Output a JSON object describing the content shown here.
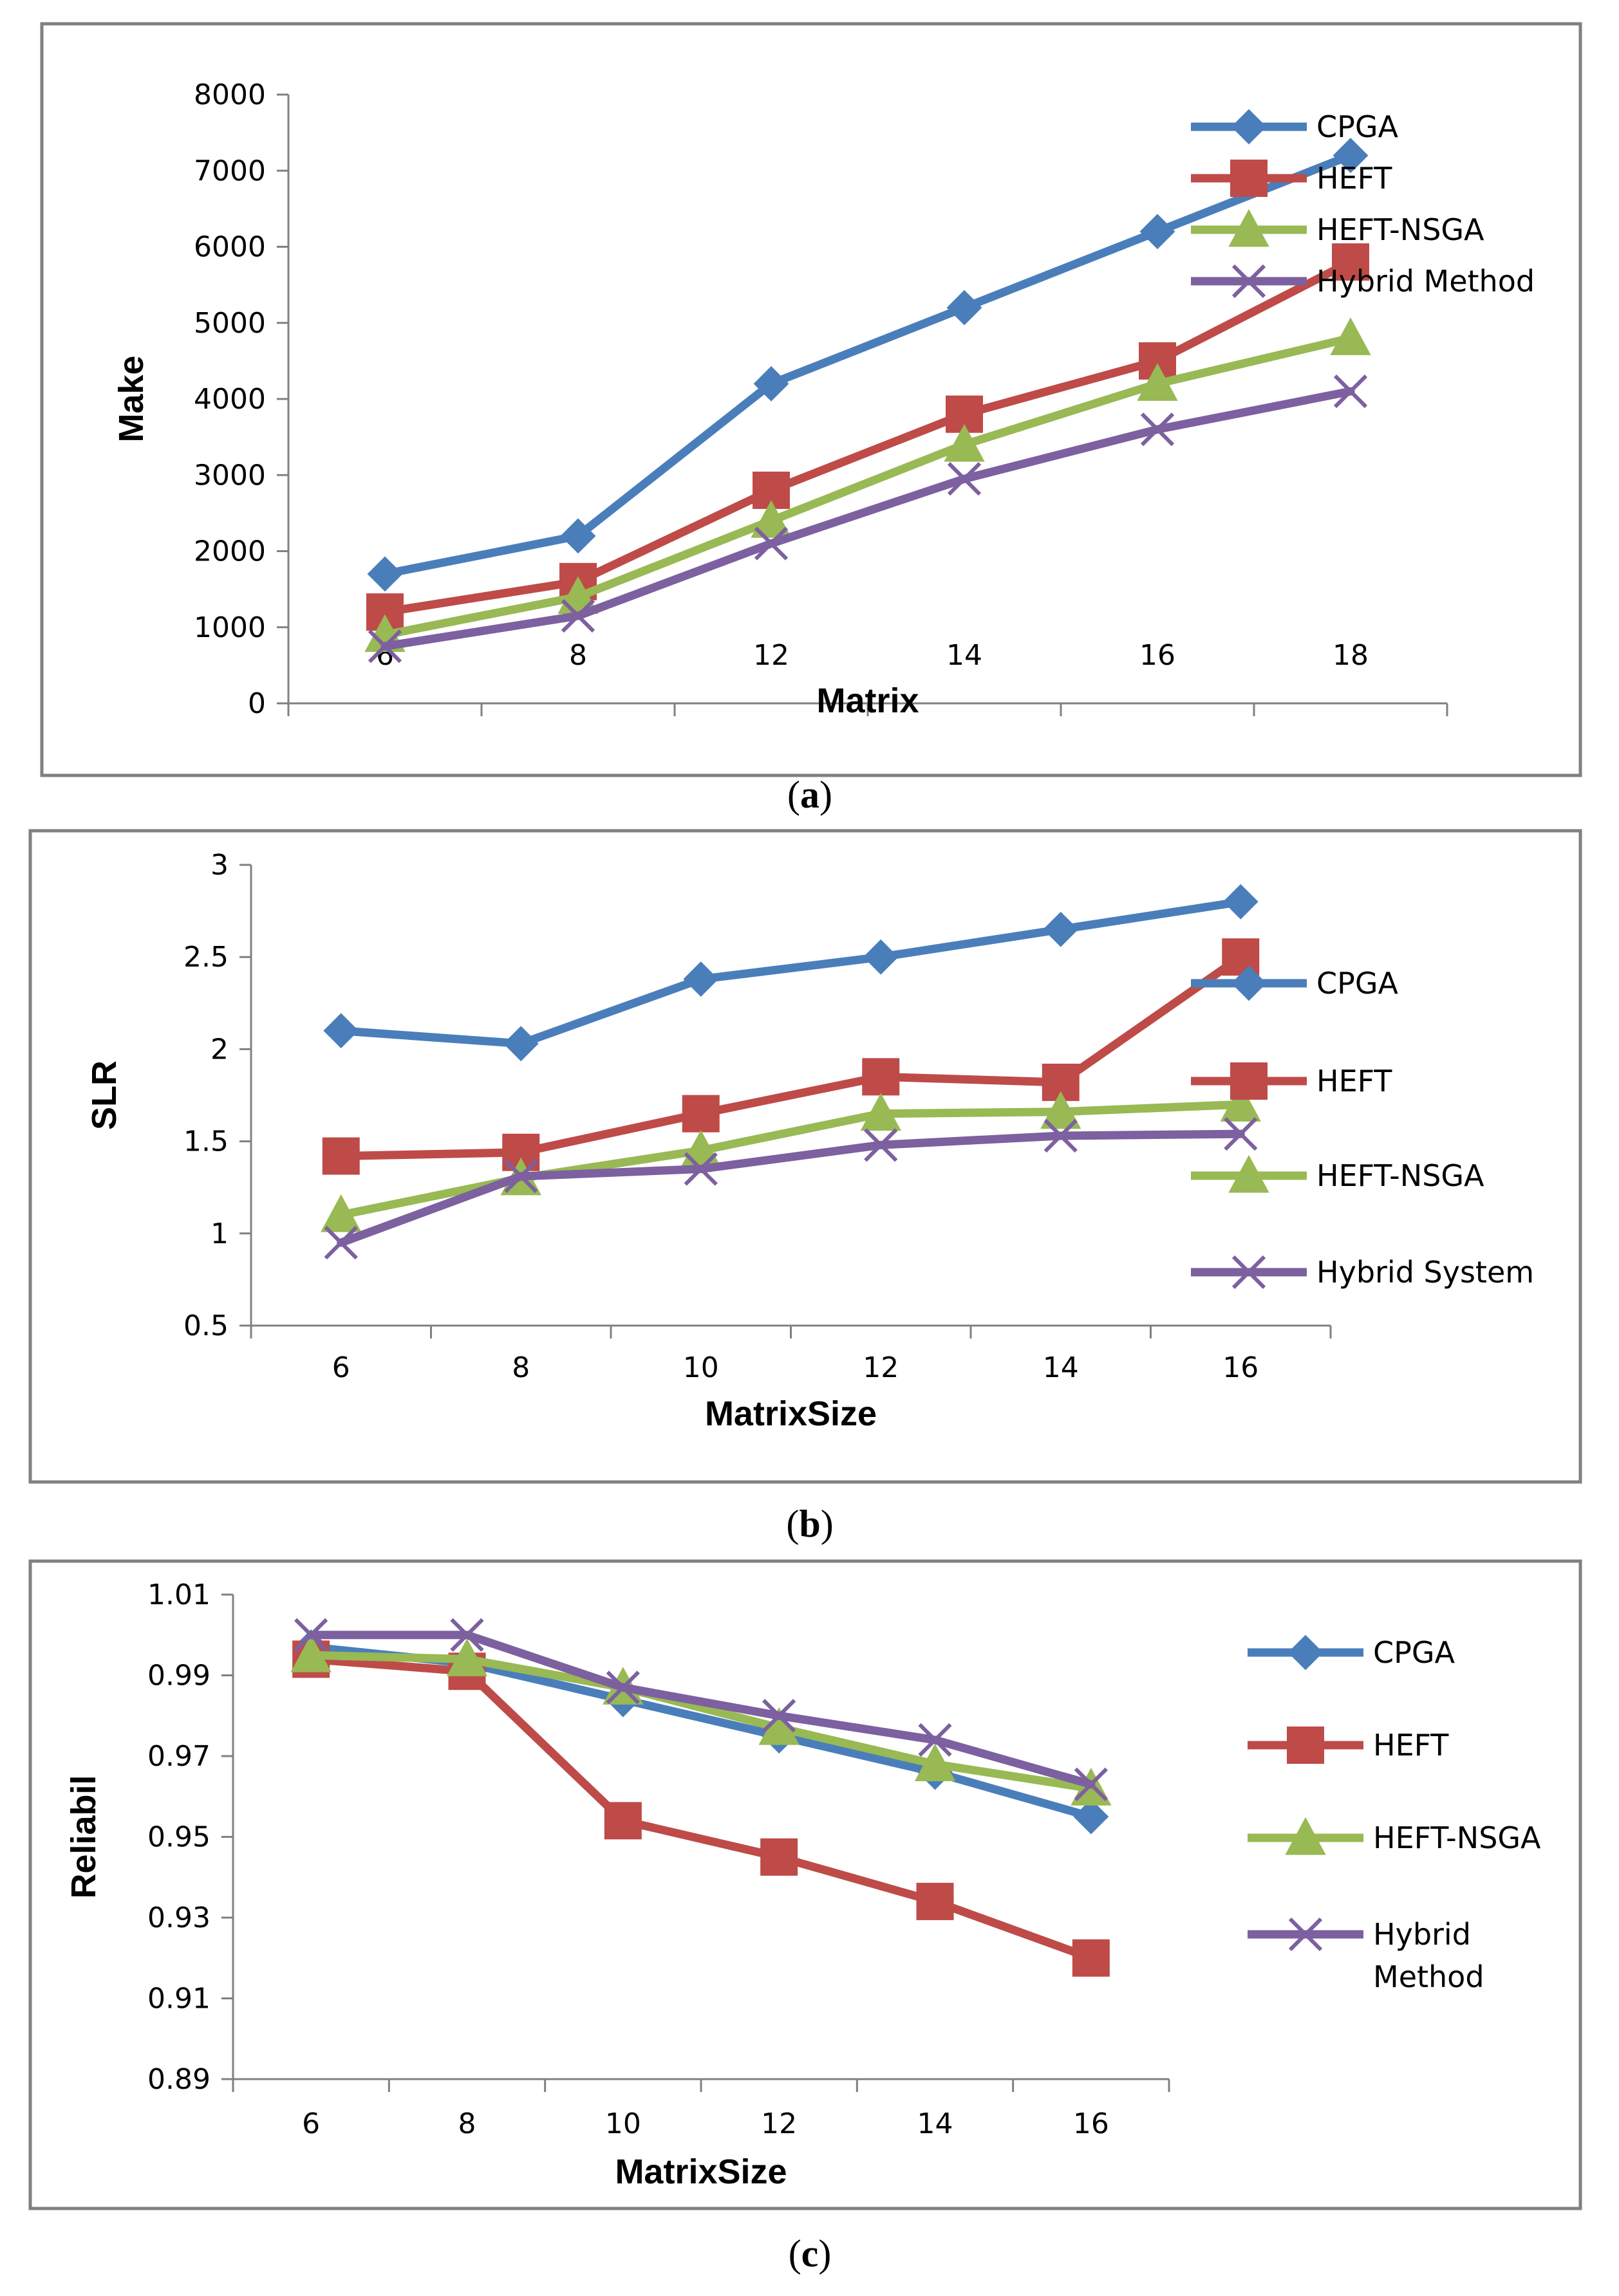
{
  "chart_data": [
    {
      "id": "a",
      "type": "line",
      "caption_letter": "a",
      "xlabel": "Matrix",
      "ylabel": "Make",
      "categories": [
        "6",
        "8",
        "12",
        "14",
        "16",
        "18"
      ],
      "ylim": [
        0,
        8000
      ],
      "yticks": [
        0,
        1000,
        2000,
        3000,
        4000,
        5000,
        6000,
        7000,
        8000
      ],
      "ytick_labels": [
        "0",
        "1000",
        "2000",
        "3000",
        "4000",
        "5000",
        "6000",
        "7000",
        "8000"
      ],
      "legend_position": "right",
      "series": [
        {
          "name": "CPGA",
          "color": "#4A7EBB",
          "marker": "diamond",
          "values": [
            1700,
            2200,
            4200,
            5200,
            6200,
            7200
          ]
        },
        {
          "name": "HEFT",
          "color": "#BE4B48",
          "marker": "square",
          "values": [
            1200,
            1600,
            2800,
            3800,
            4500,
            5800
          ]
        },
        {
          "name": "HEFT-NSGA",
          "color": "#98B954",
          "marker": "triangle",
          "values": [
            900,
            1400,
            2400,
            3400,
            4200,
            4800
          ]
        },
        {
          "name": "Hybrid Method",
          "color": "#7D60A0",
          "marker": "x",
          "values": [
            750,
            1150,
            2100,
            2950,
            3600,
            4100
          ]
        }
      ]
    },
    {
      "id": "b",
      "type": "line",
      "caption_letter": "b",
      "xlabel": "MatrixSize",
      "ylabel": "SLR",
      "categories": [
        "6",
        "8",
        "10",
        "12",
        "14",
        "16"
      ],
      "ylim": [
        0.5,
        3
      ],
      "yticks": [
        0.5,
        1,
        1.5,
        2,
        2.5,
        3
      ],
      "ytick_labels": [
        "0.5",
        "1",
        "1.5",
        "2",
        "2.5",
        "3"
      ],
      "legend_position": "right",
      "series": [
        {
          "name": "CPGA",
          "color": "#4A7EBB",
          "marker": "diamond",
          "values": [
            2.1,
            2.03,
            2.38,
            2.5,
            2.65,
            2.8
          ]
        },
        {
          "name": "HEFT",
          "color": "#BE4B48",
          "marker": "square",
          "values": [
            1.42,
            1.44,
            1.65,
            1.85,
            1.82,
            2.5
          ]
        },
        {
          "name": "HEFT-NSGA",
          "color": "#98B954",
          "marker": "triangle",
          "values": [
            1.1,
            1.3,
            1.45,
            1.65,
            1.66,
            1.7
          ]
        },
        {
          "name": "Hybrid System",
          "color": "#7D60A0",
          "marker": "x",
          "values": [
            0.95,
            1.31,
            1.35,
            1.48,
            1.53,
            1.54
          ]
        }
      ]
    },
    {
      "id": "c",
      "type": "line",
      "caption_letter": "c",
      "xlabel": "MatrixSize",
      "ylabel": "Reliabil",
      "categories": [
        "6",
        "8",
        "10",
        "12",
        "14",
        "16"
      ],
      "ylim": [
        0.89,
        1.01
      ],
      "yticks": [
        0.89,
        0.91,
        0.93,
        0.95,
        0.97,
        0.99,
        1.01
      ],
      "ytick_labels": [
        "0.89",
        "0.91",
        "0.93",
        "0.95",
        "0.97",
        "0.99",
        "1.01"
      ],
      "legend_position": "right",
      "series": [
        {
          "name": "CPGA",
          "color": "#4A7EBB",
          "marker": "diamond",
          "values": [
            0.997,
            0.993,
            0.984,
            0.975,
            0.966,
            0.955
          ]
        },
        {
          "name": "HEFT",
          "color": "#BE4B48",
          "marker": "square",
          "values": [
            0.994,
            0.991,
            0.954,
            0.945,
            0.934,
            0.92
          ]
        },
        {
          "name": "HEFT-NSGA",
          "color": "#98B954",
          "marker": "triangle",
          "values": [
            0.995,
            0.994,
            0.987,
            0.977,
            0.968,
            0.962
          ]
        },
        {
          "name": "Hybrid Method",
          "color": "#7D60A0",
          "marker": "x",
          "values": [
            1.0,
            1.0,
            0.987,
            0.98,
            0.974,
            0.963
          ],
          "legend_lines": [
            "Hybrid",
            "Method"
          ]
        }
      ]
    }
  ]
}
